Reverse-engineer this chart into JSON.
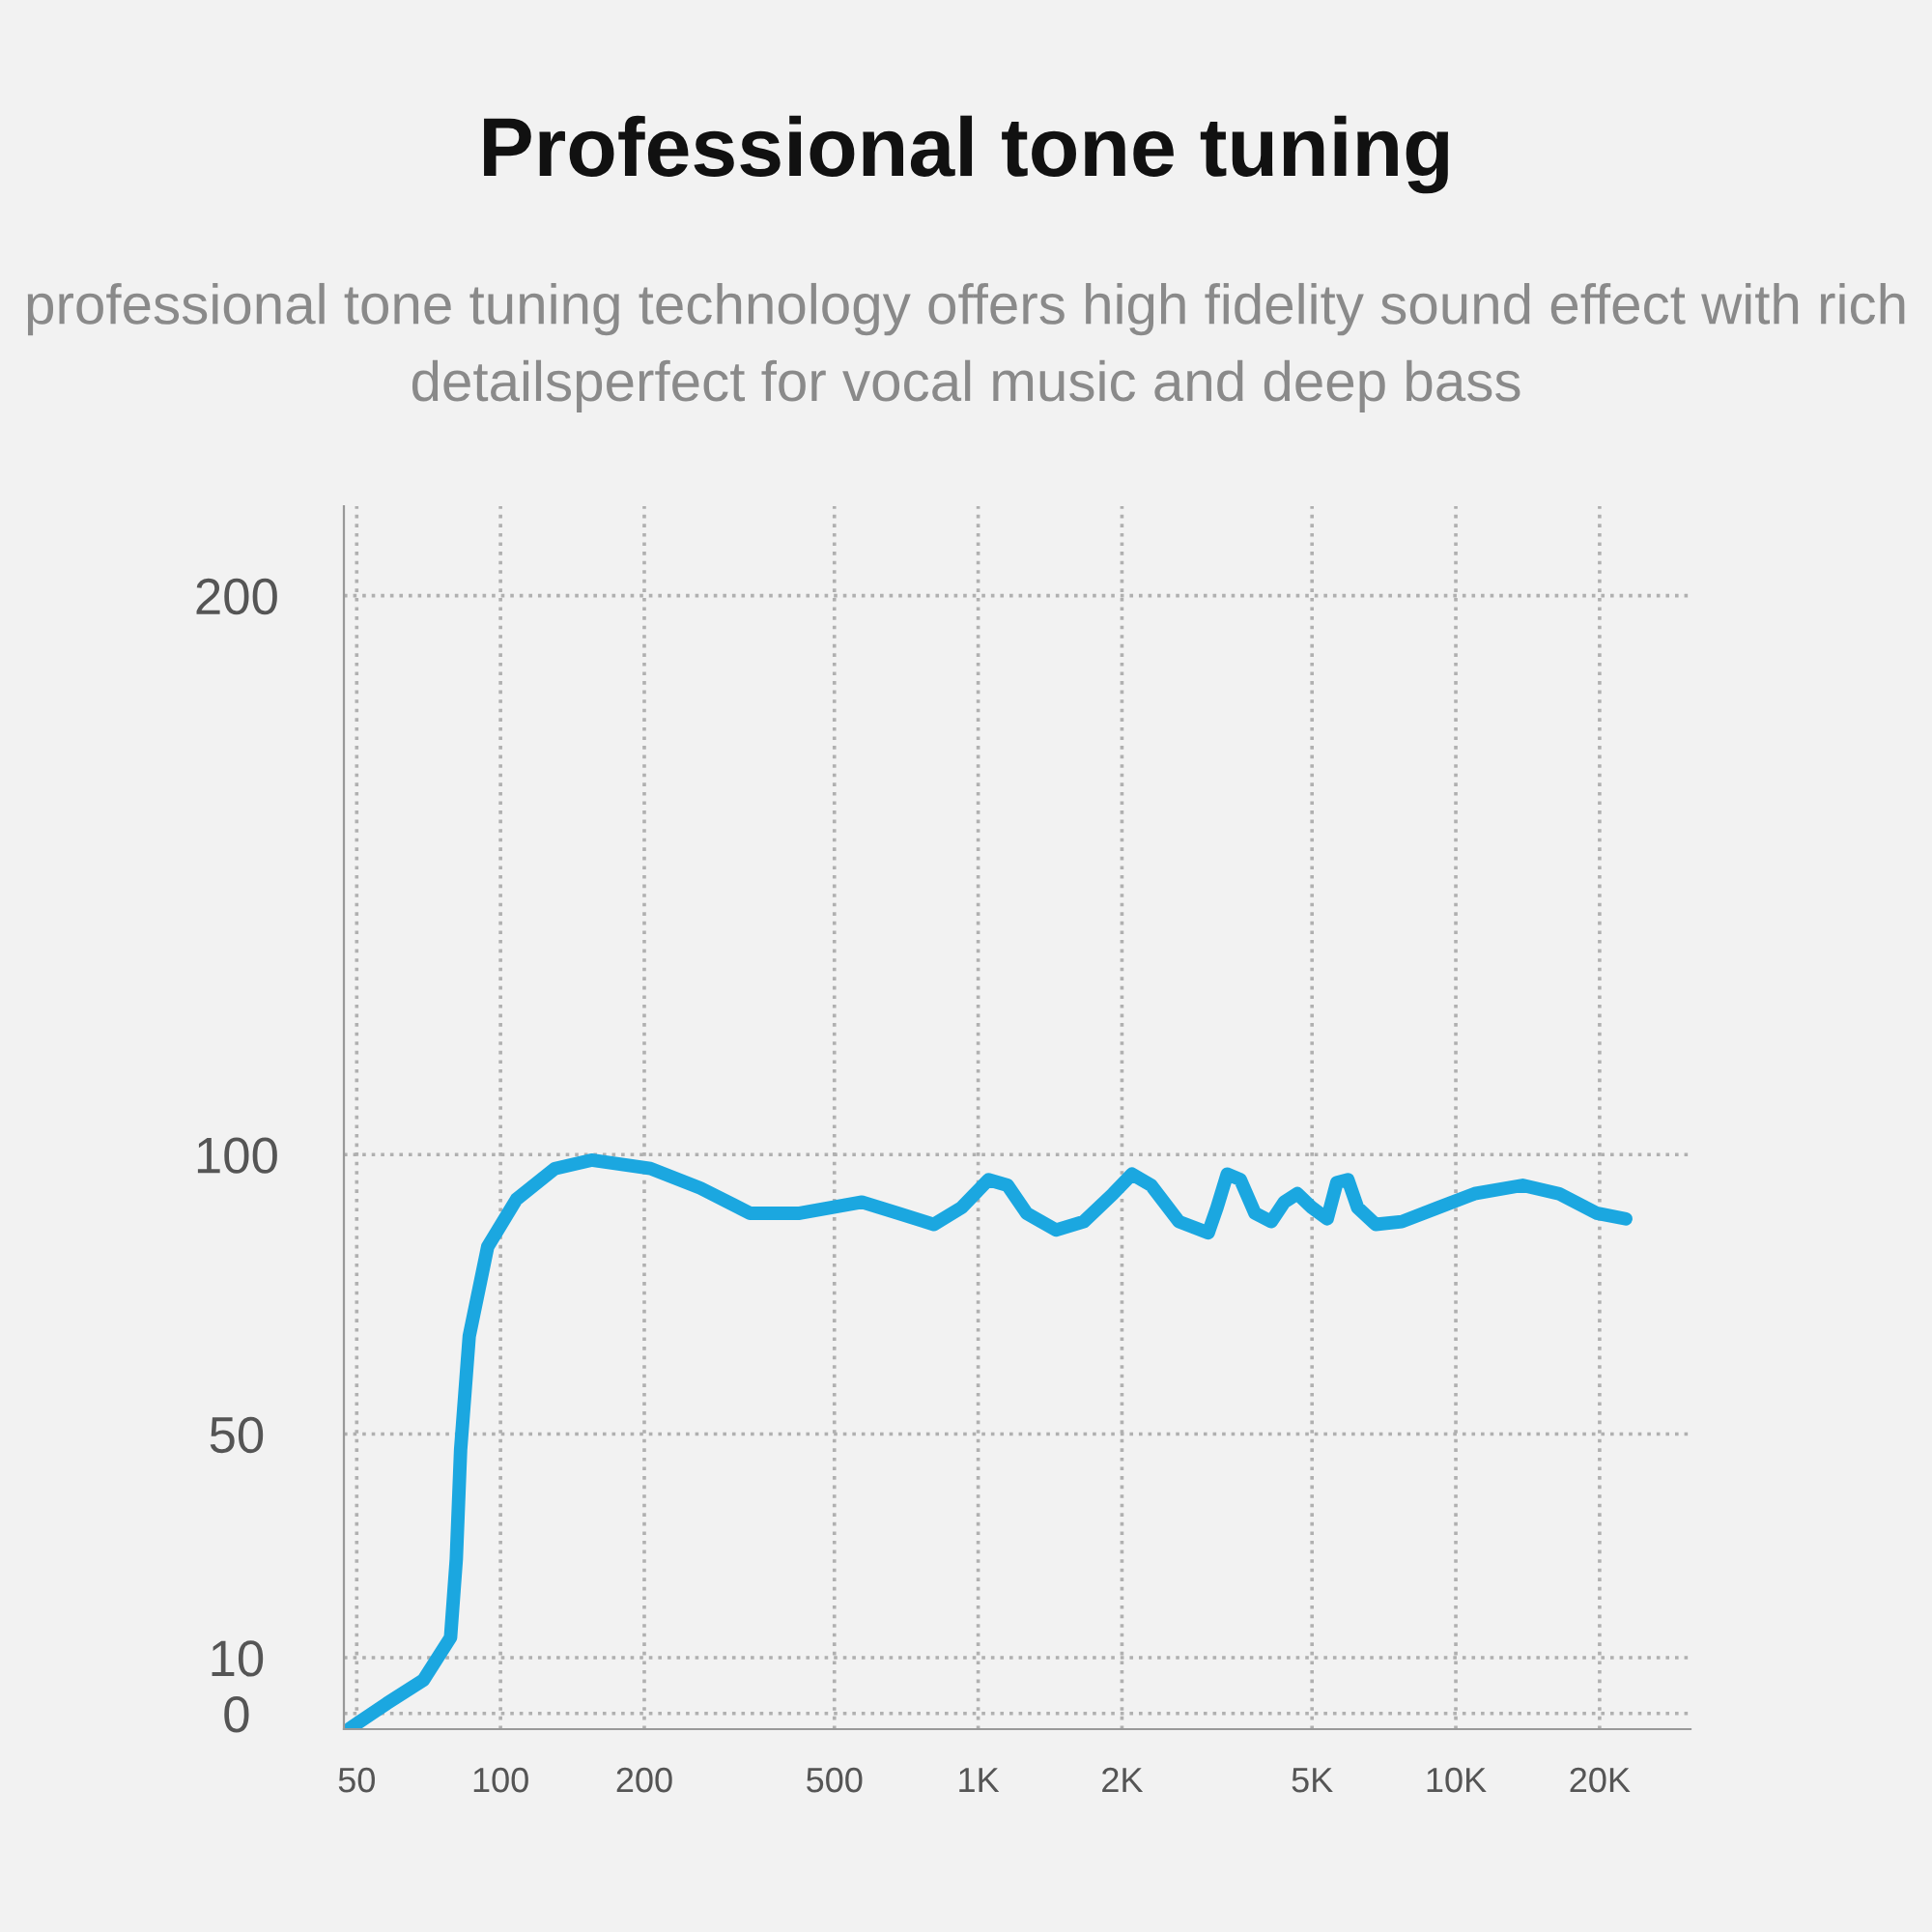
{
  "chart_data": {
    "type": "line",
    "title": "Professional tone tuning",
    "subtitle": "professional tone tuning technology offers high fidelity sound effect with rich detailsperfect for vocal music and deep bass",
    "x": [
      48.3,
      57.8,
      69,
      78.6,
      80.8,
      82.5,
      86,
      94,
      108,
      130,
      155,
      206,
      262,
      333,
      423,
      571,
      679,
      808,
      923,
      1051,
      1152,
      1263,
      1455,
      1664,
      1917,
      2100,
      2302,
      2632,
      3032,
      3162,
      3322,
      3540,
      3798,
      4108,
      4374,
      4660,
      5000,
      5380,
      5635,
      5945,
      6230,
      6795,
      7710,
      9170,
      10950,
      13800,
      16440,
      19720,
      22690
    ],
    "series": [
      {
        "color": "#1ba7e0",
        "values": [
          -2.7,
          1.8,
          6,
          13.6,
          27.6,
          47.2,
          67.5,
          83.5,
          92,
          97.5,
          99,
          97.5,
          94,
          89.5,
          89.5,
          91.5,
          89.5,
          87.5,
          90.5,
          95.5,
          94.5,
          89.5,
          86.5,
          88,
          93,
          96.5,
          94.5,
          88,
          86,
          90.5,
          96.5,
          95.5,
          89.5,
          88,
          91.5,
          93,
          90.5,
          88.5,
          95,
          95.5,
          90.5,
          87.5,
          88,
          90.5,
          93,
          94.5,
          93,
          89.5,
          88.5
        ]
      }
    ],
    "xlim": [
      47,
      31000
    ],
    "xticks": [
      50,
      100,
      200,
      500,
      {
        "value": 1000,
        "label": "1K"
      },
      {
        "value": 2000,
        "label": "2K"
      },
      {
        "value": 5000,
        "label": "5K"
      },
      {
        "value": 10000,
        "label": "10K"
      },
      {
        "value": 20000,
        "label": "20K"
      }
    ],
    "ylim": [
      -2.8,
      216
    ],
    "yticks": [
      0,
      10,
      50,
      100,
      200
    ],
    "log": "x",
    "grid": true,
    "marker": "none",
    "line_style": "solid"
  }
}
